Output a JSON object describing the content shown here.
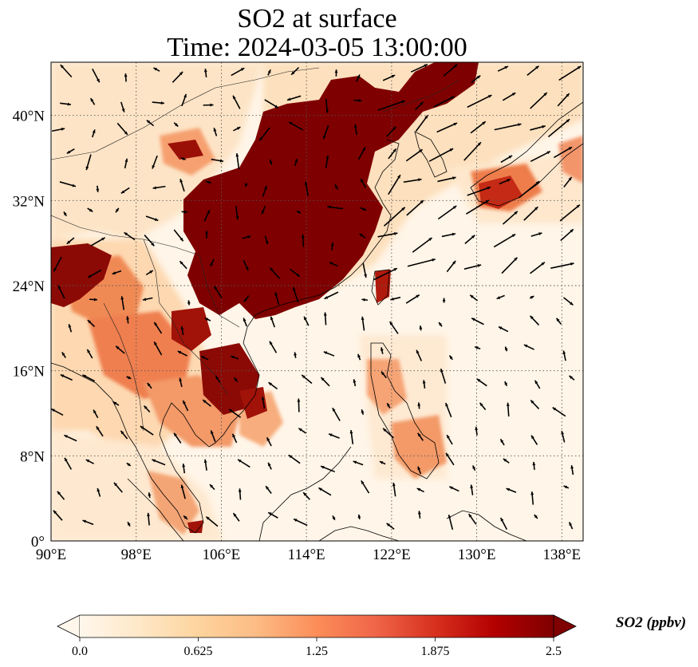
{
  "title": {
    "line1": "SO2 at surface",
    "line2": "Time: 2024-03-05 13:00:00"
  },
  "map": {
    "lon_range": [
      90,
      140
    ],
    "lat_range": [
      0,
      45
    ],
    "projection": "PlateCarree",
    "gridlines": "dotted",
    "lon_ticks": [
      "90°E",
      "98°E",
      "106°E",
      "114°E",
      "122°E",
      "130°E",
      "138°E"
    ],
    "lat_ticks": [
      "0°",
      "8°N",
      "16°N",
      "24°N",
      "32°N",
      "40°N"
    ],
    "lon_tick_values": [
      90,
      98,
      106,
      114,
      122,
      130,
      138
    ],
    "lat_tick_values": [
      0,
      8,
      16,
      24,
      32,
      40
    ]
  },
  "colorbar": {
    "label": "SO2 (ppbv)",
    "ticks": [
      "0.0",
      "0.625",
      "1.25",
      "1.875",
      "2.5"
    ],
    "tick_values": [
      0,
      0.625,
      1.25,
      1.875,
      2.5
    ],
    "range": [
      0,
      2.5
    ],
    "colormap": "OrRd",
    "extend": "both",
    "colors": [
      "#fff7ec",
      "#fee8c8",
      "#fdd49e",
      "#fdbb84",
      "#fc8d59",
      "#ef6548",
      "#d7301f",
      "#b30000",
      "#7f0000"
    ]
  },
  "layers": {
    "field": "SO2 surface concentration",
    "overlay": "wind vectors",
    "coastlines": true,
    "borders": true
  }
}
